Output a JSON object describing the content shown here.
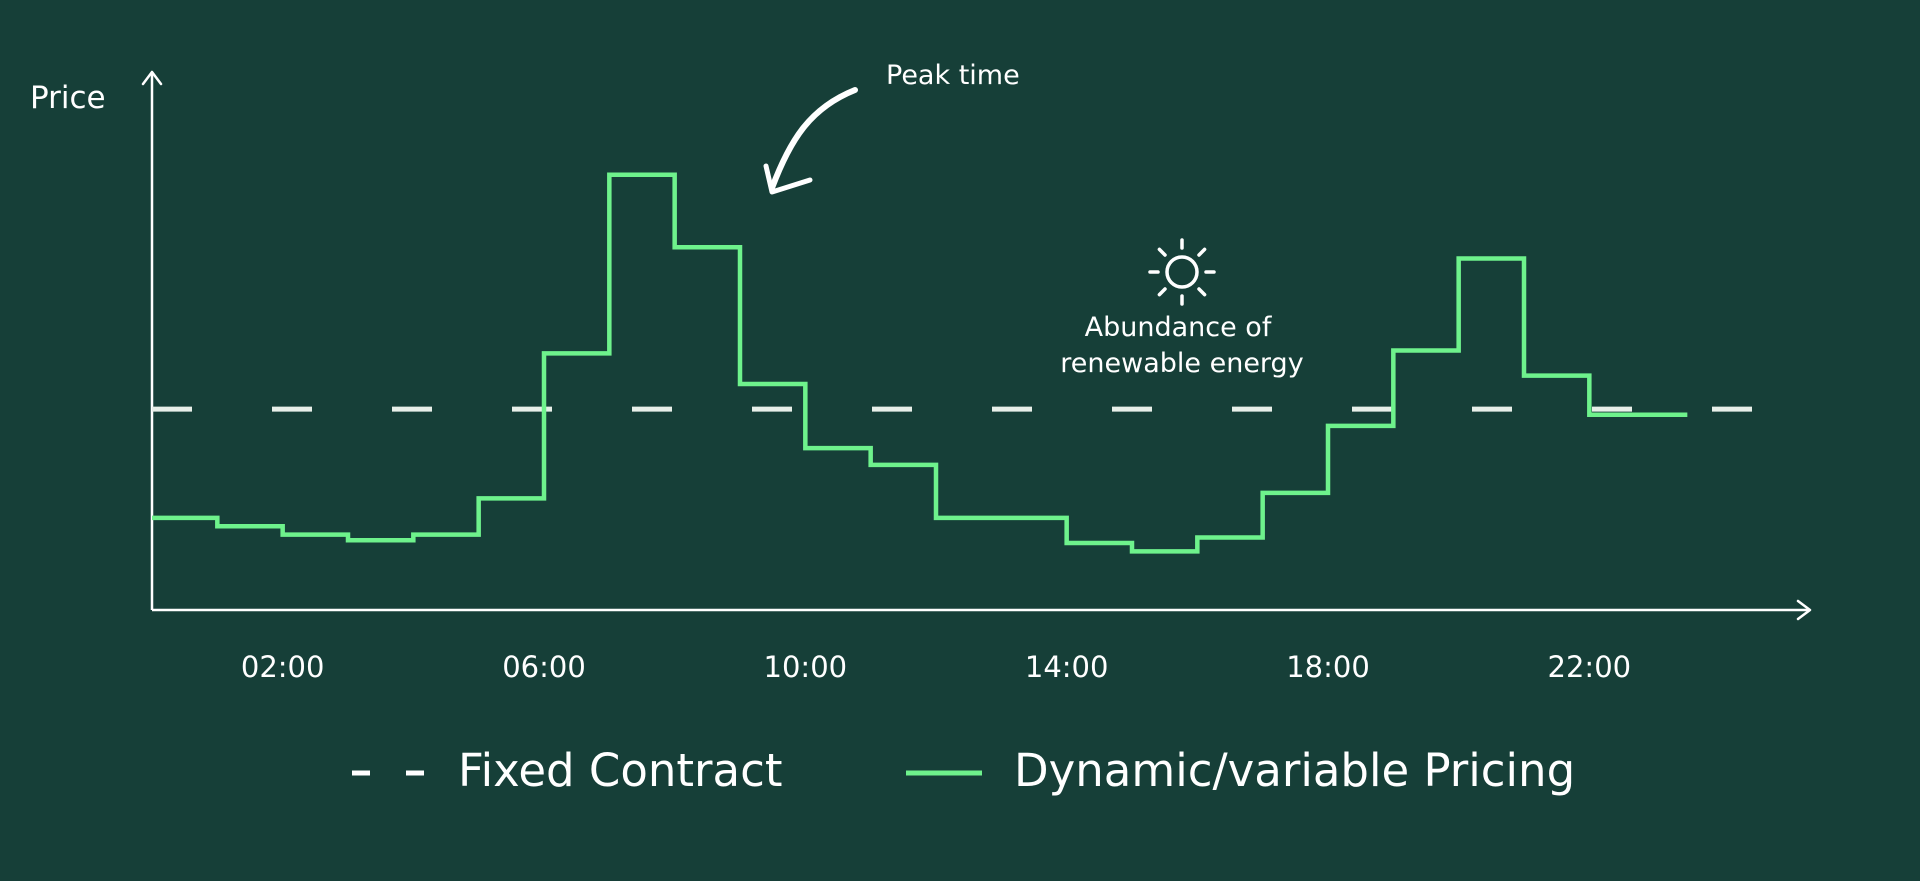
{
  "colors": {
    "background": "#163f38",
    "axis": "#ffffff",
    "fixed_line": "#e8efe9",
    "dynamic_line": "#6ef28c",
    "text": "#ffffff"
  },
  "icons": [
    "arrow-annotation-icon",
    "sun-icon"
  ],
  "chart_data": {
    "type": "line",
    "ylabel": "Price",
    "xlabel": "",
    "x_ticks": [
      {
        "hour": 2,
        "label": "02:00"
      },
      {
        "hour": 6,
        "label": "06:00"
      },
      {
        "hour": 10,
        "label": "10:00"
      },
      {
        "hour": 14,
        "label": "14:00"
      },
      {
        "hour": 18,
        "label": "18:00"
      },
      {
        "hour": 22,
        "label": "22:00"
      }
    ],
    "xlim": [
      0,
      24
    ],
    "ylim": [
      0,
      100
    ],
    "y_ticks_shown": false,
    "grid": false,
    "legend_position": "bottom-center",
    "annotations": [
      {
        "text": "Peak time",
        "near_hour": 8,
        "type": "arrow"
      },
      {
        "text": "Abundance of renewable energy",
        "lines": [
          "Abundance of",
          "renewable energy"
        ],
        "near_hour": 14.5,
        "icon": "sun-icon"
      }
    ],
    "series": [
      {
        "name": "Fixed Contract",
        "style": "dashed",
        "value": 36
      },
      {
        "name": "Dynamic/variable Pricing",
        "style": "step",
        "steps": [
          {
            "start": 0,
            "value": 16.5
          },
          {
            "start": 1,
            "value": 15
          },
          {
            "start": 2,
            "value": 13.5
          },
          {
            "start": 3,
            "value": 12.5
          },
          {
            "start": 4,
            "value": 13.5
          },
          {
            "start": 5,
            "value": 20
          },
          {
            "start": 6,
            "value": 46
          },
          {
            "start": 7,
            "value": 78
          },
          {
            "start": 8,
            "value": 65
          },
          {
            "start": 9,
            "value": 40.5
          },
          {
            "start": 10,
            "value": 29
          },
          {
            "start": 11,
            "value": 26
          },
          {
            "start": 12,
            "value": 16.5
          },
          {
            "start": 14,
            "value": 12
          },
          {
            "start": 15,
            "value": 10.5
          },
          {
            "start": 16,
            "value": 13
          },
          {
            "start": 17,
            "value": 21
          },
          {
            "start": 18,
            "value": 33
          },
          {
            "start": 19,
            "value": 46.5
          },
          {
            "start": 20,
            "value": 63
          },
          {
            "start": 21,
            "value": 42
          },
          {
            "start": 22,
            "value": 35
          },
          {
            "start": 23,
            "value": 35,
            "end": 23.5
          }
        ]
      }
    ]
  }
}
